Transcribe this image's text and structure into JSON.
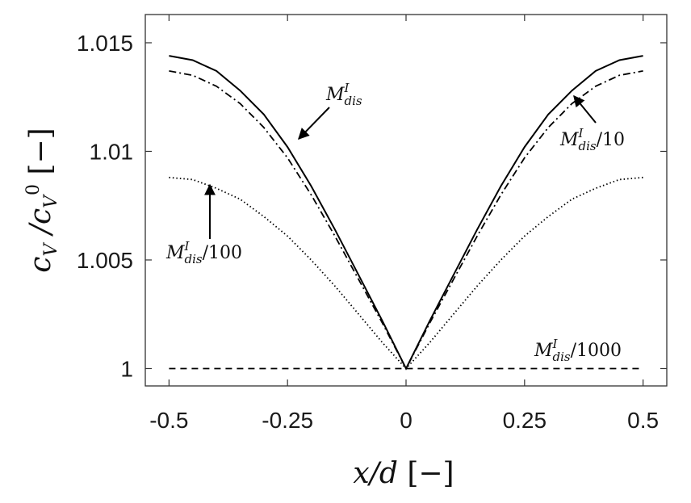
{
  "chart_data": {
    "type": "line",
    "title": "",
    "xlabel": {
      "var": "x/d",
      "unit": "[−]"
    },
    "ylabel": {
      "var": "c_V / c_V^0",
      "unit": "[−]"
    },
    "xlim": [
      -0.55,
      0.55
    ],
    "ylim": [
      0.9992,
      1.0163
    ],
    "x_ticks": [
      -0.5,
      -0.25,
      0,
      0.25,
      0.5
    ],
    "x_tick_labels": [
      "-0.5",
      "-0.25",
      "0",
      "0.25",
      "0.5"
    ],
    "y_ticks": [
      1,
      1.005,
      1.01,
      1.015
    ],
    "y_tick_labels": [
      "1",
      "1.005",
      "1.01",
      "1.015"
    ],
    "grid": false,
    "x": [
      -0.5,
      -0.45,
      -0.4,
      -0.35,
      -0.3,
      -0.25,
      -0.2,
      -0.15,
      -0.1,
      -0.05,
      0,
      0.05,
      0.1,
      0.15,
      0.2,
      0.25,
      0.3,
      0.35,
      0.4,
      0.45,
      0.5
    ],
    "series": [
      {
        "name": "M_dis^I",
        "style": "solid",
        "values": [
          1.0144,
          1.0142,
          1.0137,
          1.0128,
          1.0117,
          1.0102,
          1.0084,
          1.0064,
          1.0043,
          1.0022,
          1.0,
          1.0022,
          1.0043,
          1.0064,
          1.0084,
          1.0102,
          1.0117,
          1.0128,
          1.0137,
          1.0142,
          1.0144
        ]
      },
      {
        "name": "M_dis^I/10",
        "style": "dashdot",
        "values": [
          1.0137,
          1.0135,
          1.013,
          1.0122,
          1.0111,
          1.0097,
          1.008,
          1.0061,
          1.0041,
          1.0021,
          1.0,
          1.0021,
          1.0041,
          1.0061,
          1.008,
          1.0097,
          1.0111,
          1.0122,
          1.013,
          1.0135,
          1.0137
        ]
      },
      {
        "name": "M_dis^I/100",
        "style": "dotted",
        "values": [
          1.0088,
          1.0087,
          1.0083,
          1.0078,
          1.007,
          1.0061,
          1.005,
          1.0038,
          1.0025,
          1.0012,
          1.0,
          1.0012,
          1.0025,
          1.0038,
          1.005,
          1.0061,
          1.007,
          1.0078,
          1.0083,
          1.0087,
          1.0088
        ]
      },
      {
        "name": "M_dis^I/1000",
        "style": "dashed",
        "values": [
          1.0,
          1.0,
          1.0,
          1.0,
          1.0,
          1.0,
          1.0,
          1.0,
          1.0,
          1.0,
          1.0,
          1.0,
          1.0,
          1.0,
          1.0,
          1.0,
          1.0,
          1.0,
          1.0,
          1.0,
          1.0
        ]
      }
    ],
    "annotations": [
      {
        "label": "M_dis^I",
        "main": "M",
        "sup": "I",
        "sub": "dis",
        "suffix": ""
      },
      {
        "label": "M_dis^I/10",
        "main": "M",
        "sup": "I",
        "sub": "dis",
        "suffix": "/10"
      },
      {
        "label": "M_dis^I/100",
        "main": "M",
        "sup": "I",
        "sub": "dis",
        "suffix": "/100"
      },
      {
        "label": "M_dis^I/1000",
        "main": "M",
        "sup": "I",
        "sub": "dis",
        "suffix": "/1000"
      }
    ]
  }
}
